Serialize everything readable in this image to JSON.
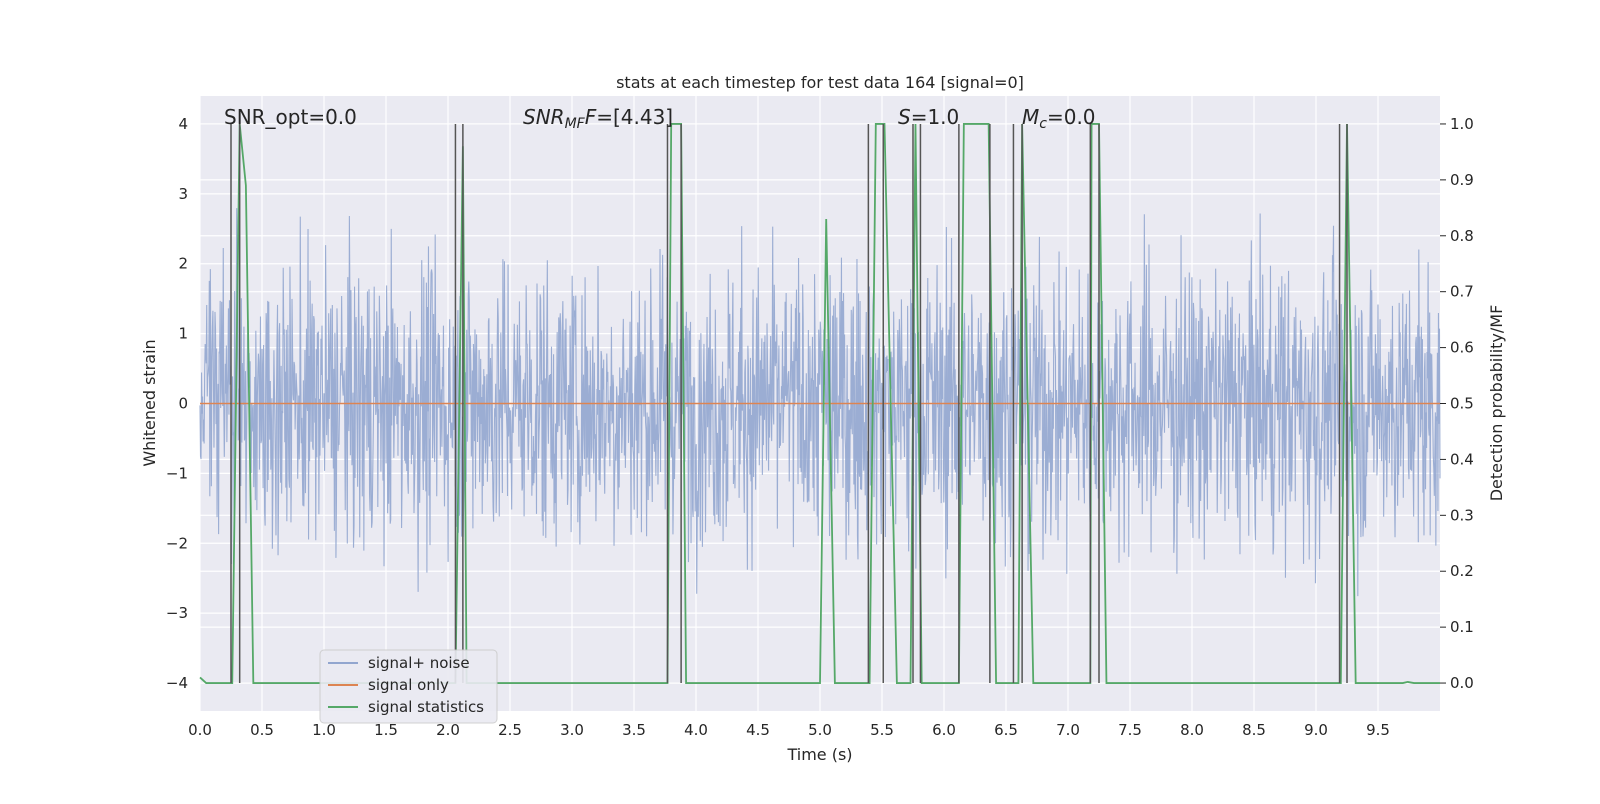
{
  "chart_data": {
    "type": "line",
    "title": "stats at each timestep for test data 164 [signal=0]",
    "xlabel": "Time (s)",
    "ylabel_left": "Whitened strain",
    "ylabel_right": "Detection probability/MF",
    "xlim": [
      0.0,
      10.0
    ],
    "ylim_left": [
      -4.4,
      4.4
    ],
    "ylim_right": [
      -0.05,
      1.05
    ],
    "xticks": [
      "0.0",
      "0.5",
      "1.0",
      "1.5",
      "2.0",
      "2.5",
      "3.0",
      "3.5",
      "4.0",
      "4.5",
      "5.0",
      "5.5",
      "6.0",
      "6.5",
      "7.0",
      "7.5",
      "8.0",
      "8.5",
      "9.0",
      "9.5"
    ],
    "xtick_values": [
      0.0,
      0.5,
      1.0,
      1.5,
      2.0,
      2.5,
      3.0,
      3.5,
      4.0,
      4.5,
      5.0,
      5.5,
      6.0,
      6.5,
      7.0,
      7.5,
      8.0,
      8.5,
      9.0,
      9.5
    ],
    "yticks_left": [
      "−4",
      "−3",
      "−2",
      "−1",
      "0",
      "1",
      "2",
      "3",
      "4"
    ],
    "ytick_values_left": [
      -4,
      -3,
      -2,
      -1,
      0,
      1,
      2,
      3,
      4
    ],
    "yticks_right": [
      "0.0",
      "0.1",
      "0.2",
      "0.3",
      "0.4",
      "0.5",
      "0.6",
      "0.7",
      "0.8",
      "0.9",
      "1.0"
    ],
    "ytick_values_right": [
      0.0,
      0.1,
      0.2,
      0.3,
      0.4,
      0.5,
      0.6,
      0.7,
      0.8,
      0.9,
      1.0
    ],
    "grid": true,
    "legend_placement": "lower-left",
    "annotations": {
      "snr_opt": "SNR_opt=0.0",
      "snr_mf_main": "SNR",
      "snr_mf_sub": "MF",
      "snr_mf_rest": "=[4.43]",
      "s_main": "S",
      "s_rest": "=1.0",
      "mc_main": "M",
      "mc_sub": "c",
      "mc_rest": "=0.0"
    },
    "series": [
      {
        "name": "signal+ noise",
        "color": "#92a6cf",
        "description_type": "noise",
        "std": 1.0
      },
      {
        "name": "signal only",
        "color": "#dd8452",
        "x": [
          0.0,
          10.0
        ],
        "y": [
          0.0,
          0.0
        ]
      },
      {
        "name": "signal statistics",
        "color": "#55a868",
        "x": [
          0.0,
          0.05,
          0.1,
          0.25,
          0.26,
          0.32,
          0.37,
          0.43,
          2.05,
          2.06,
          2.12,
          2.15,
          3.77,
          3.8,
          3.88,
          3.92,
          3.97,
          5.0,
          5.05,
          5.12,
          5.4,
          5.45,
          5.52,
          5.62,
          5.73,
          5.77,
          5.82,
          5.92,
          6.12,
          6.16,
          6.36,
          6.42,
          6.57,
          6.6,
          6.63,
          6.72,
          7.18,
          7.19,
          7.25,
          7.31,
          9.19,
          9.2,
          9.25,
          9.32,
          9.7,
          9.74,
          9.79,
          10.0
        ],
        "y": [
          0.01,
          0.0,
          0.0,
          0.0,
          0.0,
          1.0,
          0.89,
          0.0,
          0.0,
          0.0,
          0.96,
          0.0,
          0.0,
          1.0,
          1.0,
          0.0,
          0.0,
          0.0,
          0.83,
          0.0,
          0.0,
          1.0,
          1.0,
          0.0,
          0.0,
          1.0,
          0.0,
          0.0,
          0.0,
          1.0,
          1.0,
          0.0,
          0.0,
          0.0,
          1.0,
          0.0,
          0.0,
          1.0,
          1.0,
          0.0,
          0.0,
          0.0,
          1.0,
          0.0,
          0.0,
          0.002,
          0.0,
          0.0
        ]
      }
    ],
    "detection_lines": [
      0.25,
      0.32,
      2.06,
      2.12,
      3.77,
      3.88,
      5.39,
      5.51,
      5.75,
      5.81,
      6.12,
      6.37,
      6.56,
      6.63,
      7.18,
      7.25,
      9.19,
      9.25
    ],
    "line_color": "#555555"
  }
}
